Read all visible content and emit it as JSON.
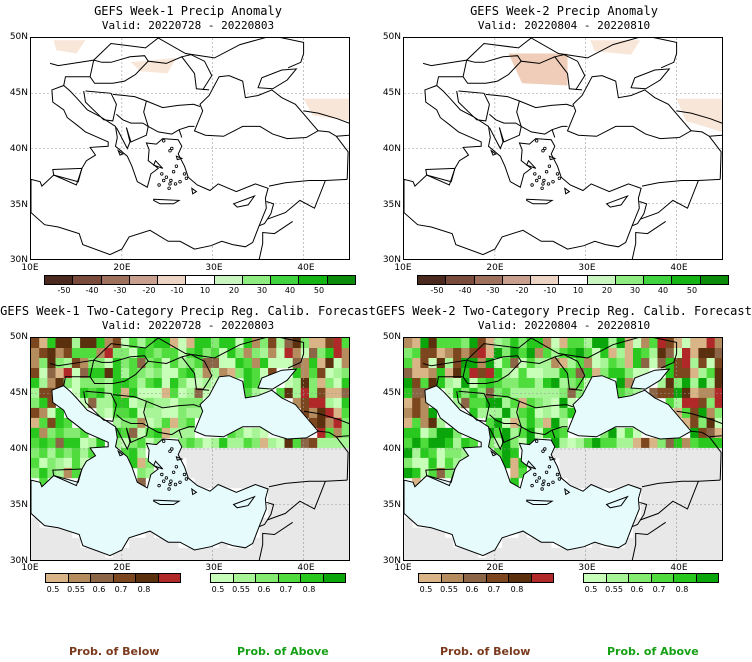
{
  "panels": [
    {
      "title": "GEFS Week-1 Precip Anomaly",
      "valid": "Valid: 20220728 - 20220803",
      "type": "anomaly",
      "y_labels": [
        "50N",
        "45N",
        "40N",
        "35N",
        "30N"
      ],
      "x_labels": [
        "10E",
        "20E",
        "30E",
        "40E"
      ],
      "colorbar_labels": [
        "-50",
        "-40",
        "-30",
        "-20",
        "-10",
        "10",
        "20",
        "30",
        "40",
        "50"
      ]
    },
    {
      "title": "GEFS Week-2 Precip Anomaly",
      "valid": "Valid: 20220804 - 20220810",
      "type": "anomaly",
      "y_labels": [
        "50N",
        "45N",
        "40N",
        "35N",
        "30N"
      ],
      "x_labels": [
        "10E",
        "20E",
        "30E",
        "40E"
      ],
      "colorbar_labels": [
        "-50",
        "-40",
        "-30",
        "-20",
        "-10",
        "10",
        "20",
        "30",
        "40",
        "50"
      ]
    },
    {
      "title": "GEFS Week-1 Two-Category Precip Reg. Calib. Forecast",
      "valid": "Valid: 20220728 - 20220803",
      "type": "probability",
      "y_labels": [
        "50N",
        "45N",
        "40N",
        "35N",
        "30N"
      ],
      "x_labels": [
        "10E",
        "20E",
        "30E",
        "40E"
      ],
      "below_labels": [
        "0.5",
        "0.55",
        "0.6",
        "0.7",
        "0.8"
      ],
      "above_labels": [
        "0.5",
        "0.55",
        "0.6",
        "0.7",
        "0.8"
      ]
    },
    {
      "title": "GEFS Week-2 Two-Category Precip Reg. Calib. Forecast",
      "valid": "Valid: 20220804 - 20220810",
      "type": "probability",
      "y_labels": [
        "50N",
        "45N",
        "40N",
        "35N",
        "30N"
      ],
      "x_labels": [
        "10E",
        "20E",
        "30E",
        "40E"
      ],
      "below_labels": [
        "0.5",
        "0.55",
        "0.6",
        "0.7",
        "0.8"
      ],
      "above_labels": [
        "0.5",
        "0.55",
        "0.6",
        "0.7",
        "0.8"
      ]
    }
  ],
  "legend": {
    "below": "Prob. of Below",
    "above": "Prob. of Above"
  },
  "colors": {
    "anomaly_scale": [
      "#4a2a1e",
      "#7a4a3a",
      "#a0705e",
      "#c9a08e",
      "#ecd3c4",
      "#ffffff",
      "#c9f5c0",
      "#8fec80",
      "#3fd43f",
      "#14b414",
      "#0a8c0a"
    ],
    "below_scale": [
      "#d8b487",
      "#b48c5e",
      "#8c6446",
      "#7c461e",
      "#5a300f",
      "#b02828"
    ],
    "above_scale": [
      "#c8ffb8",
      "#a8f598",
      "#82eb70",
      "#50dc3c",
      "#28c81e",
      "#0aa50a"
    ],
    "below_text": "#7a3a1e",
    "above_text": "#14a014",
    "water": "#e6fbfc",
    "no_data": "#e8e8e8"
  }
}
